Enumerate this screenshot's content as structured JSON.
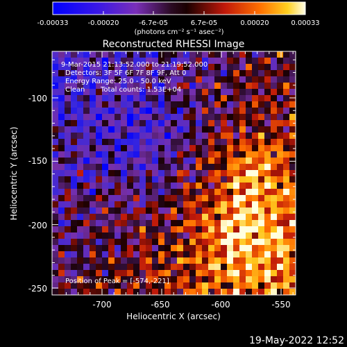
{
  "colorbar": {
    "ticks": [
      "-0.00033",
      "-0.00020",
      "-6.7e-05",
      "6.7e-05",
      "0.00020",
      "0.00033"
    ],
    "units": "(photons cm⁻² s⁻¹ asec⁻²)"
  },
  "title": "Reconstructed RHESSI Image",
  "annotations": {
    "time": "9-Mar-2015 21:13:52.000 to 21:19:52.000",
    "detectors": "Detectors: 3F 5F 6F 7F 8F 9F, Att 0",
    "energy": "Energy Range: 25.0 - 50.0 keV",
    "clean": "Clean",
    "counts": "Total counts: 1.53E+04",
    "peak": "Position of Peak = [-574,-221]"
  },
  "axes": {
    "xlabel": "Heliocentric X (arcsec)",
    "ylabel": "Heliocentric Y (arcsec)",
    "xticks": [
      "-700",
      "-650",
      "-600",
      "-550"
    ],
    "yticks": [
      "-100",
      "-150",
      "-200",
      "-250"
    ]
  },
  "footer": {
    "date": "19-May-2022 12:52"
  },
  "colors": {
    "background": "#000000",
    "colormap": [
      "#0000ff",
      "#5a2bd1",
      "#8a2c9a",
      "#000000",
      "#c0180a",
      "#ff6a00",
      "#ffc000",
      "#ffffe0"
    ]
  }
}
